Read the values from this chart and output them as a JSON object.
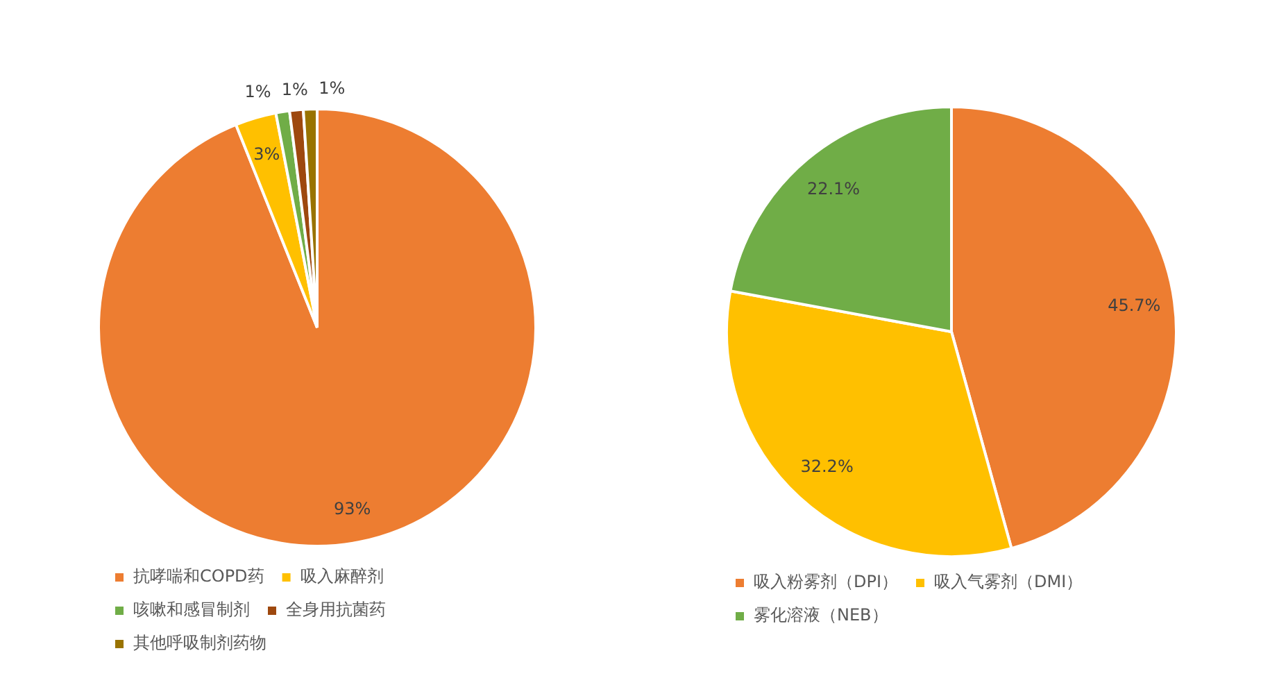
{
  "chart_data": [
    {
      "type": "pie",
      "categories": [
        "抗哮喘和COPD药",
        "吸入麻醉剂",
        "咳嗽和感冒制剂",
        "全身用抗菌药",
        "其他呼吸制剂药物"
      ],
      "values": [
        93,
        3,
        1,
        1,
        1
      ],
      "colors": [
        "#ed7d31",
        "#ffc000",
        "#70ad47",
        "#9e480e",
        "#997300"
      ],
      "value_labels": [
        "93%",
        "3%",
        "1%",
        "1%",
        "1%"
      ],
      "legend": "bottom"
    },
    {
      "type": "pie",
      "categories": [
        "吸入粉雾剂（DPI）",
        "吸入气雾剂（DMI）",
        "雾化溶液（NEB）"
      ],
      "values": [
        45.7,
        32.2,
        22.1
      ],
      "colors": [
        "#ed7d31",
        "#ffc000",
        "#70ad47"
      ],
      "value_labels": [
        "45.7%",
        "32.2%",
        "22.1%"
      ],
      "legend": "bottom"
    }
  ]
}
